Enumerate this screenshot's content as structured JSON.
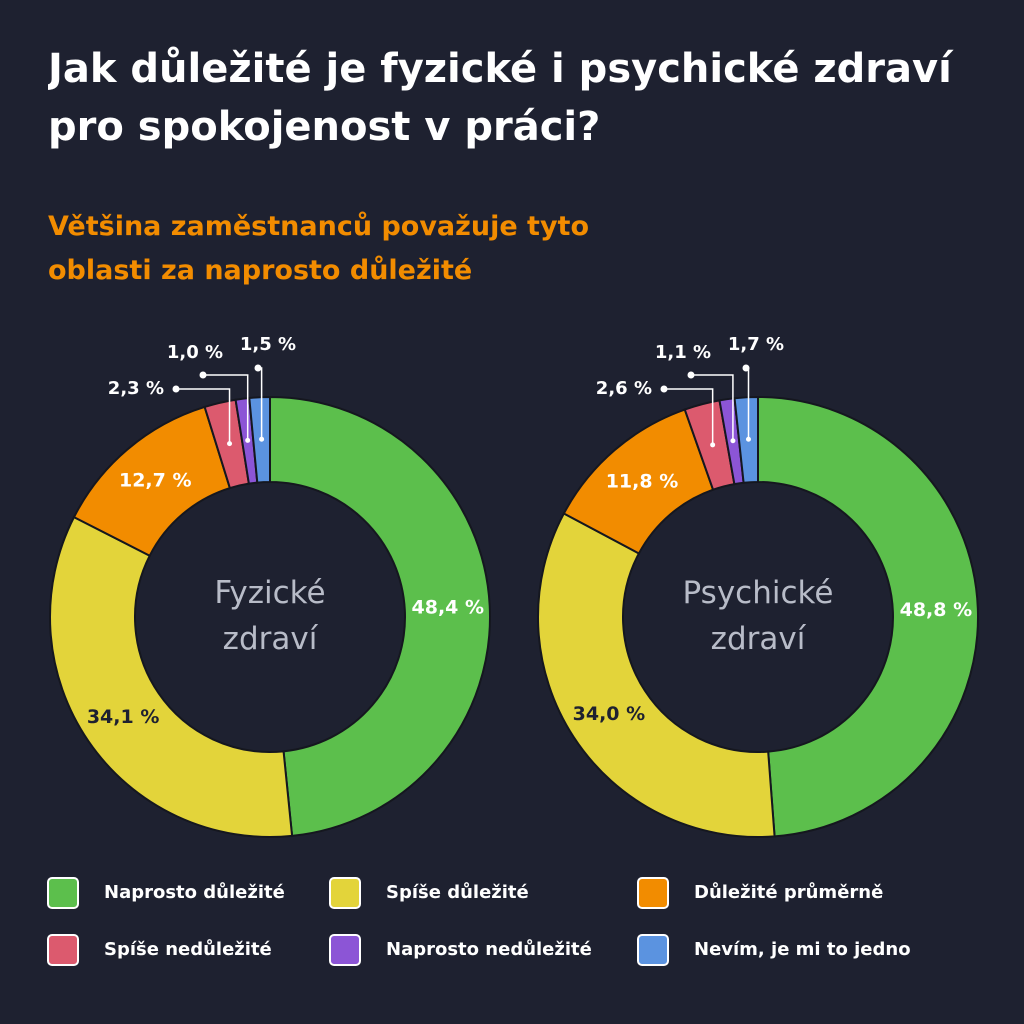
{
  "title": "Jak důležité je fyzické i psychické zdraví pro spokojenost v práci?",
  "subtitle": "Většina zaměstnanců považuje tyto oblasti za naprosto důležité",
  "chart_data": [
    {
      "type": "pie",
      "center_label": "Fyzické zdraví",
      "categories": [
        "Naprosto důležité",
        "Spíše důležité",
        "Důležité průměrně",
        "Spíše nedůležité",
        "Naprosto nedůležité",
        "Nevím, je mi to jedno"
      ],
      "values": [
        48.4,
        34.1,
        12.7,
        2.3,
        1.0,
        1.5
      ],
      "value_labels": [
        "48,4 %",
        "34,1 %",
        "12,7 %",
        "2,3 %",
        "1,0 %",
        "1,5 %"
      ],
      "colors": [
        "#5cbf4c",
        "#e3d43a",
        "#f28c00",
        "#dc5a6e",
        "#8c55d6",
        "#5b93e0"
      ]
    },
    {
      "type": "pie",
      "center_label": "Psychické zdraví",
      "categories": [
        "Naprosto důležité",
        "Spíše důležité",
        "Důležité průměrně",
        "Spíše nedůležité",
        "Naprosto nedůležité",
        "Nevím, je mi to jedno"
      ],
      "values": [
        48.8,
        34.0,
        11.8,
        2.6,
        1.1,
        1.7
      ],
      "value_labels": [
        "48,8 %",
        "34,0 %",
        "11,8 %",
        "2,6 %",
        "1,1 %",
        "1,7 %"
      ],
      "colors": [
        "#5cbf4c",
        "#e3d43a",
        "#f28c00",
        "#dc5a6e",
        "#8c55d6",
        "#5b93e0"
      ]
    }
  ]
}
